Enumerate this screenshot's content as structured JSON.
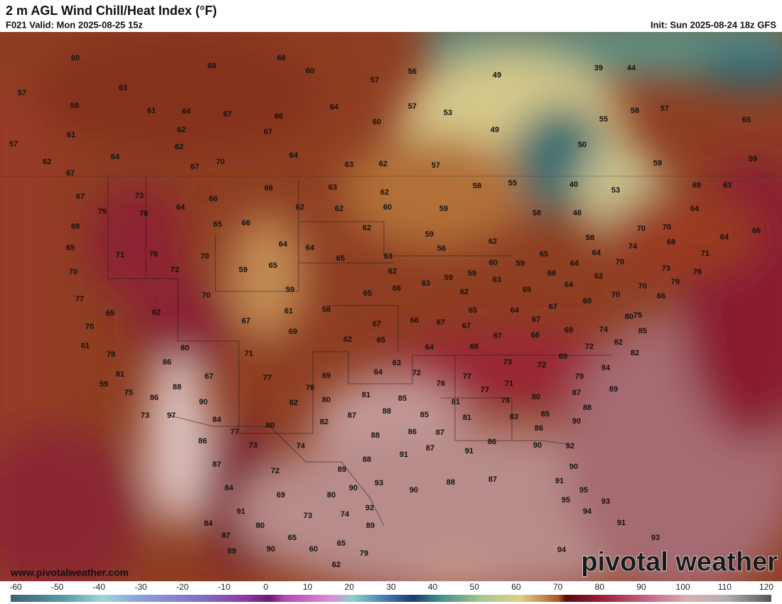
{
  "header": {
    "title": "2 m AGL Wind Chill/Heat Index (°F)",
    "valid": "F021 Valid: Mon 2025-08-25 15z",
    "init": "Init: Sun 2025-08-24 18z GFS"
  },
  "map": {
    "labels": [
      60,
      66,
      68,
      60,
      56,
      49,
      39,
      44,
      57,
      63,
      57,
      58,
      61,
      64,
      67,
      66,
      64,
      57,
      53,
      58,
      57,
      65,
      61,
      62,
      67,
      60,
      49,
      55,
      57,
      64,
      62,
      70,
      64,
      50,
      59,
      62,
      67,
      63,
      62,
      57,
      59,
      67,
      73,
      66,
      63,
      62,
      58,
      55,
      40,
      53,
      69,
      63,
      67,
      79,
      78,
      64,
      66,
      62,
      62,
      60,
      59,
      58,
      46,
      64,
      69,
      65,
      66,
      62,
      59,
      58,
      70,
      70,
      66,
      64,
      65,
      71,
      78,
      64,
      64,
      68,
      74,
      62,
      56,
      65,
      64,
      70,
      71,
      72,
      59,
      65,
      65,
      63,
      70,
      62,
      60,
      59,
      64,
      70,
      73,
      76,
      62,
      59,
      59,
      63,
      63,
      66,
      64,
      77,
      70,
      59,
      65,
      66,
      62,
      65,
      70,
      70,
      66,
      79,
      65,
      62,
      61,
      58,
      67,
      69,
      65,
      64,
      70,
      67,
      69,
      67,
      66,
      67,
      67,
      67,
      69,
      74,
      80,
      75,
      85,
      61,
      80,
      62,
      65,
      67,
      66,
      72,
      82,
      78,
      71,
      64,
      68,
      69,
      86,
      63,
      73,
      72,
      82,
      81,
      67,
      77,
      69,
      64,
      72,
      77,
      79,
      84,
      59,
      88,
      78,
      81,
      85,
      76,
      77,
      71,
      80,
      87,
      89,
      75,
      86,
      90,
      82,
      80,
      81,
      78,
      73,
      97,
      84,
      82,
      87,
      88,
      85,
      81,
      83,
      85,
      88,
      77,
      80,
      86,
      88,
      86,
      87,
      86,
      90,
      73,
      74,
      91,
      87,
      91,
      86,
      90,
      92,
      87,
      72,
      88,
      89,
      90,
      84,
      90,
      93,
      90,
      88,
      87,
      91,
      95,
      69,
      80,
      91,
      92,
      95,
      94,
      93,
      84,
      73,
      74,
      91,
      80,
      89,
      87,
      65,
      65,
      93,
      90,
      60,
      89,
      79,
      94,
      62
    ]
  },
  "watermark": {
    "url": "www.pivotalweather.com",
    "logo": "pivotal weather"
  },
  "colorbar": {
    "ticks": [
      -60,
      -50,
      -40,
      -30,
      -20,
      -10,
      0,
      10,
      20,
      30,
      40,
      50,
      60,
      70,
      80,
      90,
      100,
      110,
      120
    ]
  }
}
